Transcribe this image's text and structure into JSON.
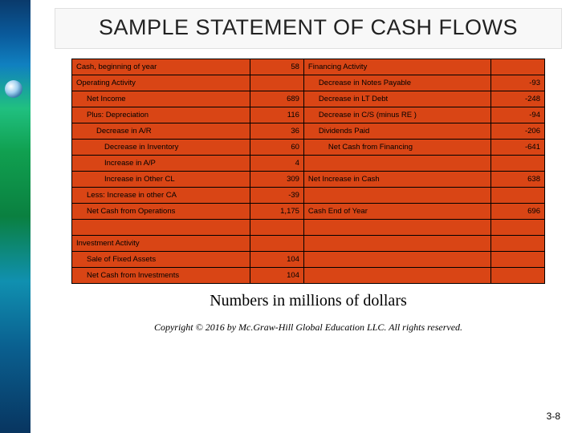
{
  "title": "SAMPLE STATEMENT OF CASH FLOWS",
  "rows": [
    {
      "c1": "Cash, beginning of year",
      "c1pad": "",
      "c2": "58",
      "c3": "Financing Activity",
      "c3pad": "",
      "c4": ""
    },
    {
      "c1": "Operating Activity",
      "c1pad": "",
      "c2": "",
      "c3": "Decrease in Notes Payable",
      "c3pad": "pad1",
      "c4": "-93"
    },
    {
      "c1": "Net Income",
      "c1pad": "pad1",
      "c2": "689",
      "c3": "Decrease in LT Debt",
      "c3pad": "pad1",
      "c4": "-248"
    },
    {
      "c1": "Plus: Depreciation",
      "c1pad": "pad1",
      "c2": "116",
      "c3": "Decrease in C/S (minus RE )",
      "c3pad": "pad1",
      "c4": "-94"
    },
    {
      "c1": "Decrease in A/R",
      "c1pad": "pad2",
      "c2": "36",
      "c3": "Dividends Paid",
      "c3pad": "pad1",
      "c4": "-206"
    },
    {
      "c1": "Decrease in Inventory",
      "c1pad": "pad3",
      "c2": "60",
      "c3": "Net Cash from Financing",
      "c3pad": "pad2",
      "c4": "-641"
    },
    {
      "c1": "Increase in A/P",
      "c1pad": "pad3",
      "c2": "4",
      "c3": "",
      "c3pad": "",
      "c4": ""
    },
    {
      "c1": "Increase in Other CL",
      "c1pad": "pad3",
      "c2": "309",
      "c3": "Net Increase in Cash",
      "c3pad": "",
      "c4": "638"
    },
    {
      "c1": "Less: Increase in other CA",
      "c1pad": "pad1",
      "c2": "-39",
      "c3": "",
      "c3pad": "",
      "c4": ""
    },
    {
      "c1": "Net Cash from Operations",
      "c1pad": "pad1",
      "c2": "1,175",
      "c3": "Cash End of Year",
      "c3pad": "",
      "c4": "696"
    },
    {
      "c1": "",
      "c1pad": "",
      "c2": "",
      "c3": "",
      "c3pad": "",
      "c4": ""
    },
    {
      "c1": "Investment Activity",
      "c1pad": "",
      "c2": "",
      "c3": "",
      "c3pad": "",
      "c4": ""
    },
    {
      "c1": "Sale of Fixed Assets",
      "c1pad": "pad1",
      "c2": "104",
      "c3": "",
      "c3pad": "",
      "c4": ""
    },
    {
      "c1": "Net Cash from Investments",
      "c1pad": "pad1",
      "c2": "104",
      "c3": "",
      "c3pad": "",
      "c4": ""
    }
  ],
  "subtitle": "Numbers in millions of dollars",
  "copyright": "Copyright © 2016 by Mc.Graw-Hill Global Education LLC. All rights reserved.",
  "pagenum": "3-8",
  "colors": {
    "cell_bg": "#d94515",
    "cell_border": "#000000"
  }
}
